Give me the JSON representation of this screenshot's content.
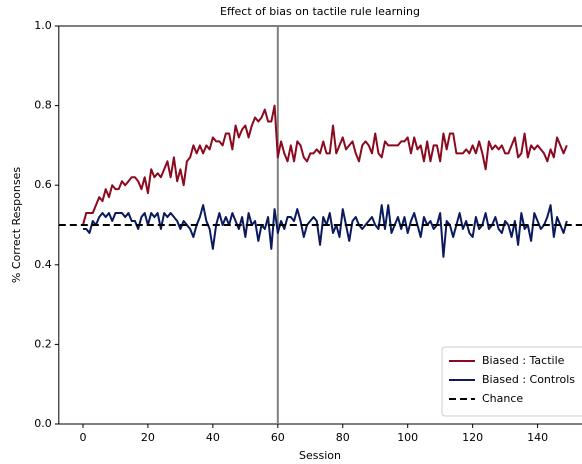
{
  "chart_data": {
    "type": "line",
    "title": "Effect of bias on tactile rule learning",
    "xlabel": "Session",
    "ylabel": "% Correct Responses",
    "x": [
      0,
      1,
      2,
      3,
      4,
      5,
      6,
      7,
      8,
      9,
      10,
      11,
      12,
      13,
      14,
      15,
      16,
      17,
      18,
      19,
      20,
      21,
      22,
      23,
      24,
      25,
      26,
      27,
      28,
      29,
      30,
      31,
      32,
      33,
      34,
      35,
      36,
      37,
      38,
      39,
      40,
      41,
      42,
      43,
      44,
      45,
      46,
      47,
      48,
      49,
      50,
      51,
      52,
      53,
      54,
      55,
      56,
      57,
      58,
      59,
      60,
      61,
      62,
      63,
      64,
      65,
      66,
      67,
      68,
      69,
      70,
      71,
      72,
      73,
      74,
      75,
      76,
      77,
      78,
      79,
      80,
      81,
      82,
      83,
      84,
      85,
      86,
      87,
      88,
      89,
      90,
      91,
      92,
      93,
      94,
      95,
      96,
      97,
      98,
      99,
      100,
      101,
      102,
      103,
      104,
      105,
      106,
      107,
      108,
      109,
      110,
      111,
      112,
      113,
      114,
      115,
      116,
      117,
      118,
      119,
      120,
      121,
      122,
      123,
      124,
      125,
      126,
      127,
      128,
      129,
      130,
      131,
      132,
      133,
      134,
      135,
      136,
      137,
      138,
      139,
      140,
      141,
      142,
      143,
      144,
      145,
      146,
      147,
      148,
      149
    ],
    "series": [
      {
        "name": "Biased : Tactile",
        "color": "#8b0a1f",
        "values": [
          0.5,
          0.53,
          0.53,
          0.53,
          0.55,
          0.57,
          0.56,
          0.59,
          0.57,
          0.6,
          0.59,
          0.59,
          0.61,
          0.6,
          0.61,
          0.62,
          0.62,
          0.61,
          0.59,
          0.62,
          0.58,
          0.64,
          0.62,
          0.63,
          0.62,
          0.64,
          0.66,
          0.62,
          0.67,
          0.61,
          0.64,
          0.6,
          0.66,
          0.67,
          0.7,
          0.68,
          0.7,
          0.68,
          0.7,
          0.69,
          0.72,
          0.71,
          0.71,
          0.7,
          0.73,
          0.73,
          0.69,
          0.75,
          0.72,
          0.74,
          0.75,
          0.72,
          0.75,
          0.77,
          0.76,
          0.77,
          0.79,
          0.76,
          0.76,
          0.8,
          0.67,
          0.71,
          0.68,
          0.66,
          0.7,
          0.66,
          0.71,
          0.7,
          0.67,
          0.66,
          0.68,
          0.68,
          0.69,
          0.68,
          0.71,
          0.68,
          0.68,
          0.75,
          0.68,
          0.7,
          0.72,
          0.69,
          0.7,
          0.71,
          0.68,
          0.66,
          0.7,
          0.71,
          0.7,
          0.68,
          0.73,
          0.68,
          0.67,
          0.71,
          0.7,
          0.7,
          0.7,
          0.7,
          0.71,
          0.71,
          0.72,
          0.68,
          0.72,
          0.69,
          0.7,
          0.66,
          0.71,
          0.66,
          0.7,
          0.7,
          0.66,
          0.73,
          0.69,
          0.73,
          0.73,
          0.68,
          0.68,
          0.68,
          0.69,
          0.68,
          0.7,
          0.68,
          0.71,
          0.68,
          0.64,
          0.71,
          0.69,
          0.7,
          0.69,
          0.7,
          0.68,
          0.68,
          0.7,
          0.72,
          0.67,
          0.68,
          0.73,
          0.67,
          0.7,
          0.69,
          0.7,
          0.69,
          0.68,
          0.66,
          0.69,
          0.67,
          0.72,
          0.7,
          0.68,
          0.7
        ]
      },
      {
        "name": "Biased : Controls",
        "color": "#0a1a5c",
        "values": [
          0.49,
          0.49,
          0.48,
          0.51,
          0.5,
          0.52,
          0.53,
          0.52,
          0.53,
          0.51,
          0.53,
          0.53,
          0.53,
          0.52,
          0.53,
          0.51,
          0.51,
          0.49,
          0.52,
          0.53,
          0.5,
          0.53,
          0.52,
          0.53,
          0.49,
          0.53,
          0.52,
          0.53,
          0.52,
          0.51,
          0.49,
          0.51,
          0.5,
          0.49,
          0.47,
          0.5,
          0.52,
          0.55,
          0.51,
          0.49,
          0.44,
          0.5,
          0.53,
          0.5,
          0.52,
          0.5,
          0.53,
          0.51,
          0.49,
          0.52,
          0.47,
          0.53,
          0.5,
          0.51,
          0.46,
          0.5,
          0.49,
          0.52,
          0.44,
          0.54,
          0.48,
          0.51,
          0.49,
          0.52,
          0.52,
          0.51,
          0.54,
          0.51,
          0.47,
          0.5,
          0.51,
          0.52,
          0.51,
          0.45,
          0.52,
          0.5,
          0.53,
          0.48,
          0.5,
          0.47,
          0.54,
          0.5,
          0.46,
          0.51,
          0.52,
          0.5,
          0.49,
          0.5,
          0.51,
          0.52,
          0.5,
          0.49,
          0.55,
          0.49,
          0.55,
          0.48,
          0.5,
          0.52,
          0.49,
          0.52,
          0.48,
          0.51,
          0.53,
          0.5,
          0.47,
          0.52,
          0.5,
          0.51,
          0.49,
          0.5,
          0.53,
          0.42,
          0.51,
          0.5,
          0.47,
          0.5,
          0.53,
          0.49,
          0.51,
          0.48,
          0.47,
          0.52,
          0.49,
          0.5,
          0.53,
          0.49,
          0.5,
          0.52,
          0.49,
          0.48,
          0.51,
          0.5,
          0.47,
          0.51,
          0.45,
          0.53,
          0.49,
          0.5,
          0.46,
          0.53,
          0.51,
          0.49,
          0.5,
          0.52,
          0.55,
          0.47,
          0.52,
          0.5,
          0.48,
          0.51
        ]
      }
    ],
    "hline": {
      "name": "Chance",
      "value": 0.5,
      "color": "#000000"
    },
    "vline": {
      "value": 60,
      "color": "#808080"
    },
    "xlim": [
      -7.45,
      156.45
    ],
    "xticks": [
      0,
      20,
      40,
      60,
      80,
      100,
      120,
      140
    ],
    "ylim": [
      0,
      1
    ],
    "yticks": [
      {
        "value": 0,
        "label": "0.0"
      },
      0.2,
      0.4,
      0.6,
      0.8,
      {
        "value": 1,
        "label": "1.0"
      }
    ],
    "legend": "lower right"
  }
}
